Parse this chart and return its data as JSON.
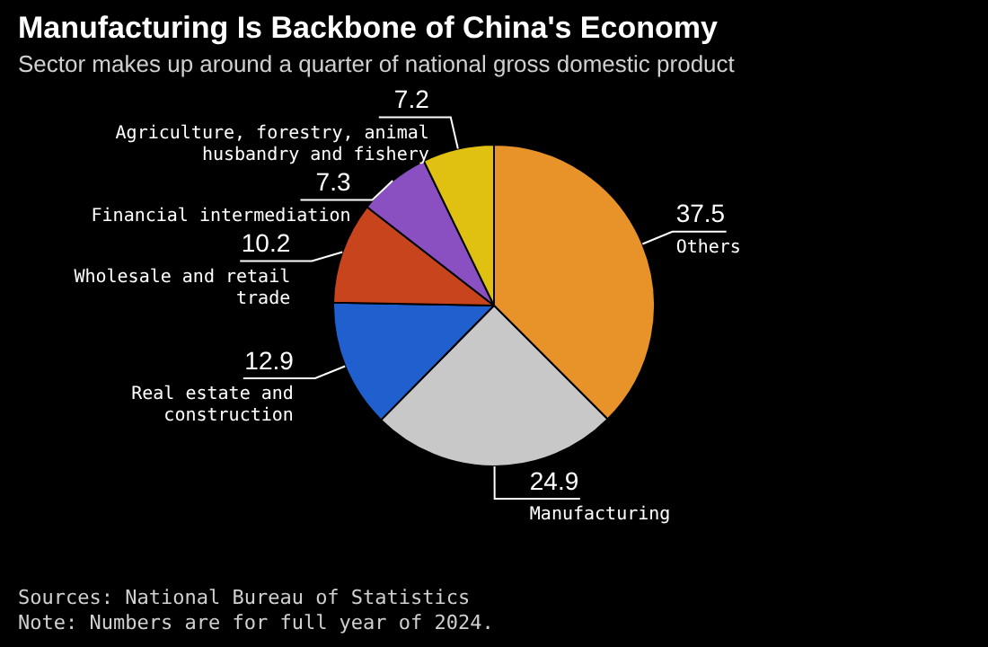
{
  "chart_data": {
    "type": "pie",
    "title": "Manufacturing Is Backbone of China's Economy",
    "subtitle": "Sector makes up around a quarter of national gross domestic product",
    "categories": [
      "Others",
      "Manufacturing",
      "Real estate and construction",
      "Wholesale and retail trade",
      "Financial intermediation",
      "Agriculture, forestry, animal husbandry and fishery"
    ],
    "values": [
      37.5,
      24.9,
      12.9,
      10.2,
      7.3,
      7.2
    ],
    "colors": [
      "#e8922a",
      "#c8c8c8",
      "#1f5fce",
      "#c8441c",
      "#8a4fc0",
      "#e0c010"
    ],
    "data_labels": true,
    "annotations": [
      "Sources: National Bureau of Statistics",
      "Note: Numbers are for full year of 2024."
    ]
  }
}
